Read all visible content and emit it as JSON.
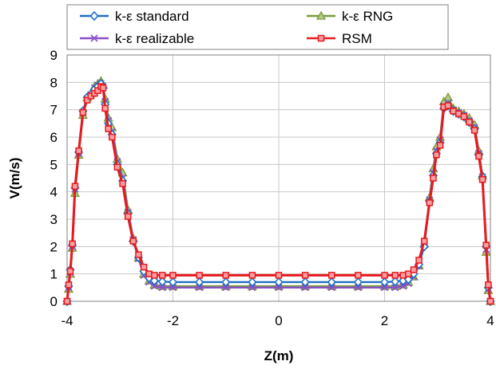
{
  "chart_data": {
    "type": "line",
    "title": "",
    "xlabel": "Z(m)",
    "ylabel": "V(m/s)",
    "xlim": [
      -4,
      4
    ],
    "ylim": [
      0,
      9
    ],
    "x_ticks": [
      -4,
      -2,
      0,
      2,
      4
    ],
    "y_ticks": [
      0,
      1,
      2,
      3,
      4,
      5,
      6,
      7,
      8,
      9
    ],
    "grid": "both",
    "legend_position": "top",
    "series": [
      {
        "name": "k-ε standard",
        "color": "#1f6fc2",
        "marker": "diamond",
        "x": [
          -4.0,
          -3.97,
          -3.94,
          -3.9,
          -3.85,
          -3.78,
          -3.7,
          -3.62,
          -3.55,
          -3.48,
          -3.42,
          -3.36,
          -3.32,
          -3.28,
          -3.22,
          -3.15,
          -3.05,
          -2.95,
          -2.85,
          -2.75,
          -2.65,
          -2.55,
          -2.45,
          -2.35,
          -2.2,
          -2.0,
          -1.5,
          -1.0,
          -0.5,
          0.0,
          0.5,
          1.0,
          1.5,
          2.0,
          2.2,
          2.35,
          2.45,
          2.55,
          2.65,
          2.75,
          2.85,
          2.92,
          2.98,
          3.05,
          3.12,
          3.2,
          3.3,
          3.4,
          3.5,
          3.6,
          3.7,
          3.78,
          3.85,
          3.92,
          3.96,
          4.0
        ],
        "y": [
          0.0,
          0.55,
          1.15,
          2.05,
          4.15,
          5.45,
          6.95,
          7.45,
          7.55,
          7.75,
          7.85,
          7.95,
          7.8,
          7.2,
          6.5,
          6.1,
          5.0,
          4.4,
          3.2,
          2.2,
          1.6,
          1.1,
          0.85,
          0.75,
          0.72,
          0.7,
          0.7,
          0.7,
          0.7,
          0.7,
          0.7,
          0.7,
          0.7,
          0.7,
          0.72,
          0.75,
          0.8,
          1.0,
          1.35,
          2.0,
          3.65,
          4.6,
          5.4,
          5.8,
          7.05,
          7.15,
          6.95,
          6.85,
          6.75,
          6.55,
          6.3,
          5.35,
          4.55,
          2.0,
          0.5,
          0.0
        ]
      },
      {
        "name": "k-ε RNG",
        "color": "#7a9a3a",
        "marker": "triangle",
        "x": [
          -4.0,
          -3.97,
          -3.94,
          -3.9,
          -3.85,
          -3.78,
          -3.7,
          -3.62,
          -3.55,
          -3.48,
          -3.42,
          -3.36,
          -3.32,
          -3.28,
          -3.22,
          -3.15,
          -3.05,
          -2.95,
          -2.85,
          -2.75,
          -2.65,
          -2.55,
          -2.45,
          -2.35,
          -2.2,
          -2.0,
          -1.5,
          -1.0,
          -0.5,
          0.0,
          0.5,
          1.0,
          1.5,
          2.0,
          2.2,
          2.35,
          2.45,
          2.55,
          2.65,
          2.75,
          2.85,
          2.92,
          2.98,
          3.05,
          3.12,
          3.2,
          3.3,
          3.4,
          3.5,
          3.6,
          3.7,
          3.78,
          3.85,
          3.92,
          3.96,
          4.0
        ],
        "y": [
          0.0,
          0.45,
          1.0,
          1.95,
          3.95,
          5.35,
          6.8,
          7.45,
          7.6,
          7.85,
          7.95,
          8.05,
          7.9,
          7.4,
          6.7,
          6.35,
          5.2,
          4.7,
          3.35,
          2.3,
          1.6,
          1.0,
          0.75,
          0.6,
          0.55,
          0.55,
          0.55,
          0.55,
          0.55,
          0.55,
          0.55,
          0.55,
          0.55,
          0.55,
          0.55,
          0.6,
          0.7,
          0.9,
          1.3,
          2.1,
          3.8,
          4.85,
          5.65,
          6.0,
          7.3,
          7.45,
          7.05,
          6.95,
          6.85,
          6.7,
          6.45,
          5.5,
          4.6,
          1.8,
          0.4,
          0.0
        ]
      },
      {
        "name": "k-ε realizable",
        "color": "#8a4fc7",
        "marker": "x",
        "x": [
          -4.0,
          -3.97,
          -3.94,
          -3.9,
          -3.85,
          -3.78,
          -3.7,
          -3.62,
          -3.55,
          -3.48,
          -3.42,
          -3.36,
          -3.32,
          -3.28,
          -3.22,
          -3.15,
          -3.05,
          -2.95,
          -2.85,
          -2.75,
          -2.65,
          -2.55,
          -2.45,
          -2.35,
          -2.2,
          -2.0,
          -1.5,
          -1.0,
          -0.5,
          0.0,
          0.5,
          1.0,
          1.5,
          2.0,
          2.2,
          2.35,
          2.45,
          2.55,
          2.65,
          2.75,
          2.85,
          2.92,
          2.98,
          3.05,
          3.12,
          3.2,
          3.3,
          3.4,
          3.5,
          3.6,
          3.7,
          3.78,
          3.85,
          3.92,
          3.96,
          4.0
        ],
        "y": [
          0.0,
          0.5,
          1.05,
          2.0,
          4.1,
          5.4,
          6.9,
          7.4,
          7.55,
          7.8,
          7.9,
          7.95,
          7.85,
          7.3,
          6.6,
          6.2,
          5.1,
          4.5,
          3.25,
          2.25,
          1.55,
          0.95,
          0.7,
          0.55,
          0.5,
          0.5,
          0.5,
          0.5,
          0.5,
          0.5,
          0.5,
          0.5,
          0.5,
          0.5,
          0.5,
          0.55,
          0.65,
          0.9,
          1.3,
          2.05,
          3.7,
          4.7,
          5.5,
          5.9,
          7.15,
          7.25,
          7.0,
          6.9,
          6.8,
          6.6,
          6.35,
          5.4,
          4.55,
          1.9,
          0.45,
          0.0
        ]
      },
      {
        "name": "RSM",
        "color": "#e8191f",
        "marker": "square",
        "x": [
          -4.0,
          -3.97,
          -3.94,
          -3.9,
          -3.85,
          -3.78,
          -3.7,
          -3.62,
          -3.55,
          -3.48,
          -3.42,
          -3.36,
          -3.32,
          -3.28,
          -3.22,
          -3.15,
          -3.05,
          -2.95,
          -2.85,
          -2.75,
          -2.65,
          -2.55,
          -2.45,
          -2.35,
          -2.2,
          -2.0,
          -1.5,
          -1.0,
          -0.5,
          0.0,
          0.5,
          1.0,
          1.5,
          2.0,
          2.2,
          2.35,
          2.45,
          2.55,
          2.65,
          2.75,
          2.85,
          2.92,
          2.98,
          3.05,
          3.12,
          3.2,
          3.3,
          3.4,
          3.5,
          3.6,
          3.7,
          3.78,
          3.85,
          3.92,
          3.96,
          4.0
        ],
        "y": [
          0.0,
          0.6,
          1.1,
          2.1,
          4.2,
          5.5,
          6.9,
          7.35,
          7.5,
          7.6,
          7.7,
          7.85,
          7.8,
          7.05,
          6.3,
          6.0,
          4.9,
          4.3,
          3.1,
          2.2,
          1.7,
          1.25,
          1.0,
          0.95,
          0.95,
          0.95,
          0.95,
          0.95,
          0.95,
          0.95,
          0.95,
          0.95,
          0.95,
          0.95,
          0.95,
          0.95,
          1.0,
          1.15,
          1.5,
          2.2,
          3.6,
          4.5,
          5.35,
          5.7,
          7.1,
          7.15,
          6.95,
          6.85,
          6.75,
          6.55,
          6.25,
          5.3,
          4.45,
          2.05,
          0.6,
          0.0
        ]
      }
    ]
  }
}
